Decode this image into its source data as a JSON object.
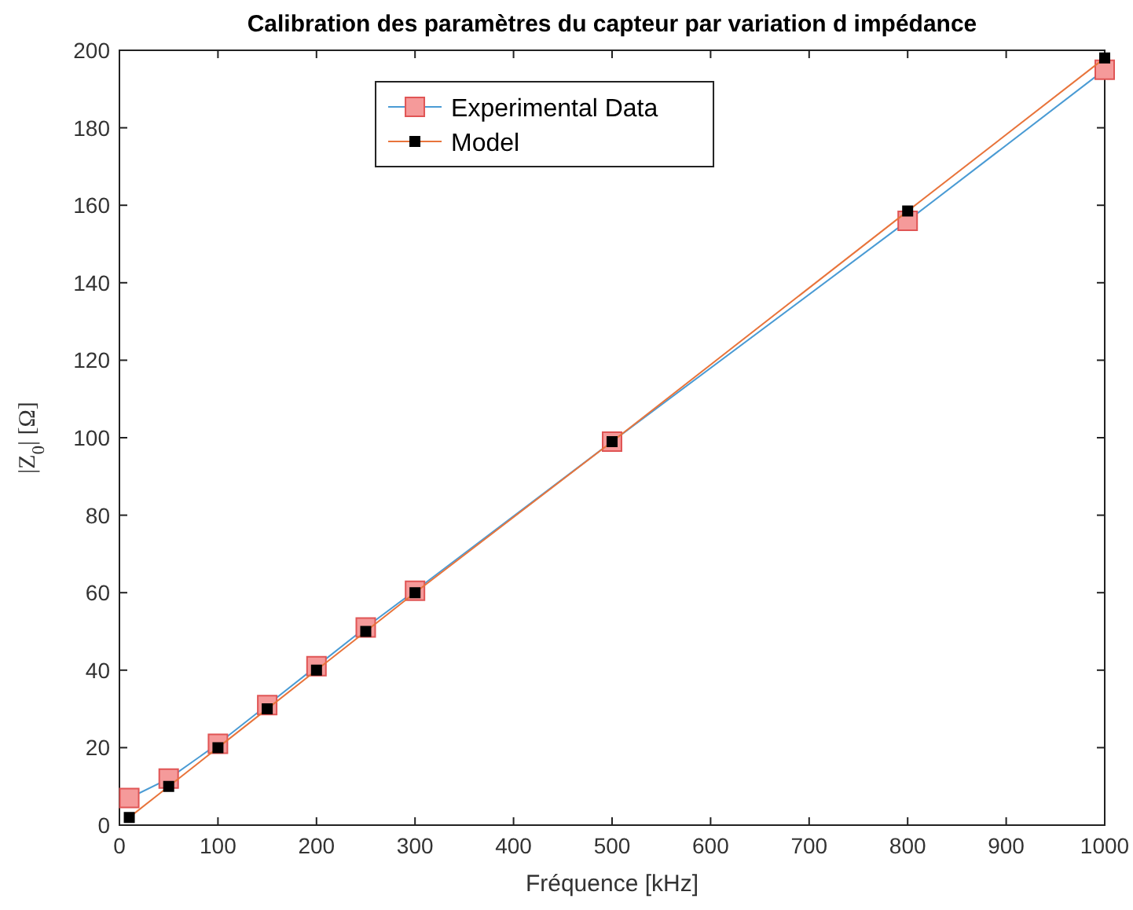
{
  "chart_data": {
    "type": "line",
    "title": "Calibration des paramètres du capteur par variation d impédance",
    "xlabel": "Fréquence [kHz]",
    "ylabel": "|Z$_{0}$| [Ω]",
    "x": [
      10,
      50,
      100,
      150,
      200,
      250,
      300,
      500,
      800,
      1000
    ],
    "series": [
      {
        "name": "Experimental Data",
        "color": "#4a9bd4",
        "marker": "square",
        "values": [
          7,
          12,
          21,
          31,
          41,
          51,
          60.5,
          99,
          156,
          195
        ]
      },
      {
        "name": "Model",
        "color": "#e8743b",
        "marker": "square",
        "values": [
          2,
          10,
          20,
          30,
          40,
          50,
          60,
          99,
          158.5,
          198
        ]
      }
    ],
    "xlim": [
      0,
      1000
    ],
    "xticks": [
      0,
      100,
      200,
      300,
      400,
      500,
      600,
      700,
      800,
      900,
      1000
    ],
    "ylim": [
      0,
      200
    ],
    "yticks": [
      0,
      20,
      40,
      60,
      80,
      100,
      120,
      140,
      160,
      180,
      200
    ],
    "grid": false,
    "legend": "top",
    "line_style": "solid"
  }
}
